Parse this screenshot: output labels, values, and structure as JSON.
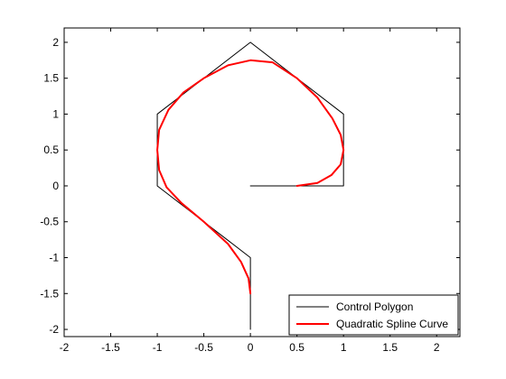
{
  "chart_data": {
    "type": "line",
    "title": "",
    "xlabel": "",
    "ylabel": "",
    "xlim": [
      -2,
      2.25
    ],
    "ylim": [
      -2.1,
      2.2
    ],
    "grid": false,
    "legend_position": "bottom-right",
    "x_ticks": [
      {
        "value": -2,
        "label": "-2"
      },
      {
        "value": -1.5,
        "label": "-1.5"
      },
      {
        "value": -1,
        "label": "-1"
      },
      {
        "value": -0.5,
        "label": "-0.5"
      },
      {
        "value": 0,
        "label": "0"
      },
      {
        "value": 0.5,
        "label": "0.5"
      },
      {
        "value": 1,
        "label": "1"
      },
      {
        "value": 1.5,
        "label": "1.5"
      },
      {
        "value": 2,
        "label": "2"
      }
    ],
    "y_ticks": [
      {
        "value": -2,
        "label": "-2"
      },
      {
        "value": -1.5,
        "label": "-1.5"
      },
      {
        "value": -1,
        "label": "-1"
      },
      {
        "value": -0.5,
        "label": "-0.5"
      },
      {
        "value": 0,
        "label": "0"
      },
      {
        "value": 0.5,
        "label": "0.5"
      },
      {
        "value": 1,
        "label": "1"
      },
      {
        "value": 1.5,
        "label": "1.5"
      },
      {
        "value": 2,
        "label": "2"
      }
    ],
    "series": [
      {
        "name": "Control Polygon",
        "color": "#000000",
        "points": [
          [
            0,
            -2
          ],
          [
            0,
            -1
          ],
          [
            -1,
            0
          ],
          [
            -1,
            1
          ],
          [
            0,
            2
          ],
          [
            1,
            1
          ],
          [
            1,
            0
          ],
          [
            0,
            0
          ]
        ]
      },
      {
        "name": "Quadratic Spline Curve",
        "color": "#ff0000",
        "points": [
          [
            0,
            -1.5
          ],
          [
            -0.02,
            -1.29
          ],
          [
            -0.1,
            -1.06
          ],
          [
            -0.24,
            -0.81
          ],
          [
            -0.5,
            -0.5
          ],
          [
            -0.74,
            -0.24
          ],
          [
            -0.9,
            -0.02
          ],
          [
            -0.98,
            0.22
          ],
          [
            -1,
            0.5
          ],
          [
            -0.98,
            0.78
          ],
          [
            -0.88,
            1.06
          ],
          [
            -0.72,
            1.3
          ],
          [
            -0.5,
            1.5
          ],
          [
            -0.24,
            1.68
          ],
          [
            0,
            1.75
          ],
          [
            0.24,
            1.72
          ],
          [
            0.5,
            1.5
          ],
          [
            0.72,
            1.23
          ],
          [
            0.88,
            0.94
          ],
          [
            0.97,
            0.71
          ],
          [
            1,
            0.5
          ],
          [
            0.97,
            0.3
          ],
          [
            0.87,
            0.15
          ],
          [
            0.72,
            0.04
          ],
          [
            0.5,
            0
          ]
        ]
      }
    ]
  }
}
